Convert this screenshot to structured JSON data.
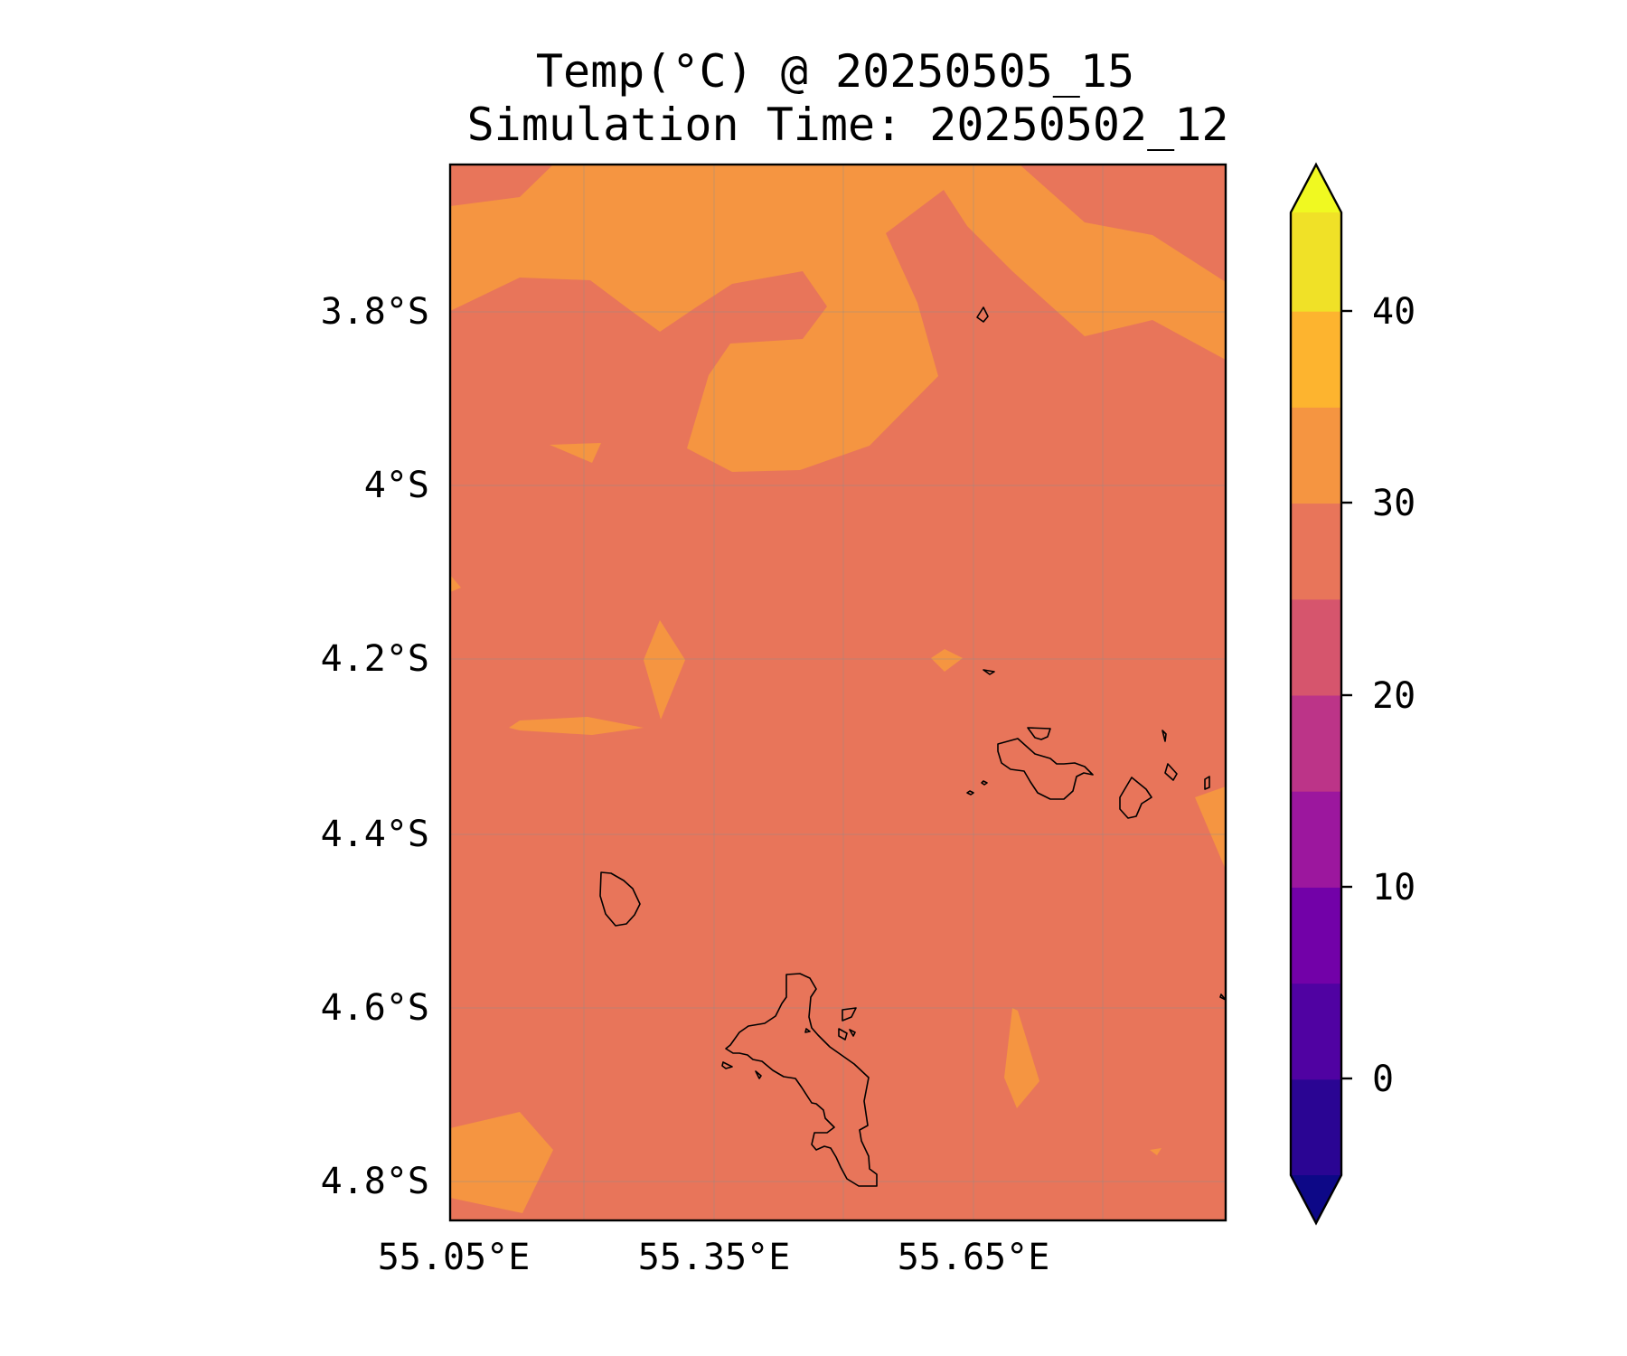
{
  "title": {
    "line1": "Temp(°C) @ 20250505_15",
    "line2": "Simulation Time: 20250502_12"
  },
  "map": {
    "lon_range": [
      55.05,
      55.95
    ],
    "lat_range": [
      -4.84,
      -3.62
    ],
    "lat_ticks": [
      {
        "value": -3.8,
        "label": "3.8°S"
      },
      {
        "value": -4.0,
        "label": "4°S"
      },
      {
        "value": -4.2,
        "label": "4.2°S"
      },
      {
        "value": -4.4,
        "label": "4.4°S"
      },
      {
        "value": -4.6,
        "label": "4.6°S"
      },
      {
        "value": -4.8,
        "label": "4.8°S"
      }
    ],
    "lon_ticks": [
      {
        "value": 55.05,
        "label": "55.05°E"
      },
      {
        "value": 55.35,
        "label": "55.35°E"
      },
      {
        "value": 55.65,
        "label": "55.65°E"
      }
    ],
    "gridlines": true,
    "background_band": "25–30",
    "background_color": "#e8755a",
    "warm_band": "30–35",
    "warm_color": "#f59541",
    "coastline_color": "#000000"
  },
  "colorbar": {
    "extend": "both",
    "orientation": "vertical",
    "ticks": [
      {
        "value": 0,
        "label": "0"
      },
      {
        "value": 10,
        "label": "10"
      },
      {
        "value": 20,
        "label": "20"
      },
      {
        "value": 30,
        "label": "30"
      },
      {
        "value": 40,
        "label": "40"
      }
    ],
    "boundaries": [
      -5,
      0,
      5,
      10,
      15,
      20,
      25,
      30,
      35,
      40,
      45
    ],
    "under_color": "#0d0887",
    "over_color": "#f0f921",
    "bin_colors": [
      "#2a0593",
      "#5002a2",
      "#7201a8",
      "#9c179e",
      "#bc3488",
      "#d6556d",
      "#e8755a",
      "#f59541",
      "#fdb42f",
      "#f0e127"
    ]
  }
}
